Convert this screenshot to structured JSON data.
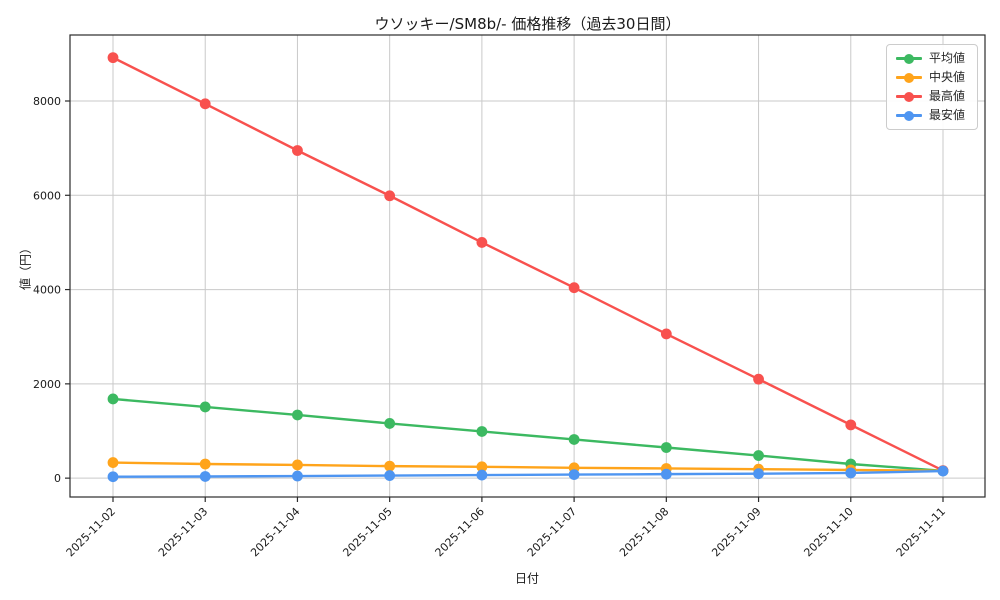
{
  "chart_data": {
    "type": "line",
    "title": "ウソッキー/SM8b/- 価格推移（過去30日間）",
    "xlabel": "日付",
    "ylabel": "値（円）",
    "x": [
      "2025-11-02",
      "2025-11-03",
      "2025-11-04",
      "2025-11-05",
      "2025-11-06",
      "2025-11-07",
      "2025-11-08",
      "2025-11-09",
      "2025-11-10",
      "2025-11-11"
    ],
    "series": [
      {
        "name": "平均値",
        "color": "#3cb961",
        "values": [
          1680,
          1510,
          1340,
          1160,
          990,
          820,
          650,
          480,
          300,
          155
        ]
      },
      {
        "name": "中央値",
        "color": "#ffa41b",
        "values": [
          330,
          300,
          280,
          255,
          240,
          220,
          205,
          190,
          175,
          155
        ]
      },
      {
        "name": "最高値",
        "color": "#f8514e",
        "values": [
          8920,
          7940,
          6950,
          5990,
          5000,
          4040,
          3060,
          2100,
          1130,
          160
        ]
      },
      {
        "name": "最安値",
        "color": "#4e95f1",
        "values": [
          30,
          35,
          45,
          55,
          65,
          75,
          85,
          95,
          110,
          150
        ]
      }
    ],
    "legend_order": [
      "平均値",
      "中央値",
      "最高値",
      "最安値"
    ],
    "legend_position": "upper right",
    "yticks": [
      0,
      2000,
      4000,
      6000,
      8000
    ],
    "ylim": [
      -400,
      9400
    ],
    "grid": true
  },
  "colors": {
    "grid": "#c9c9c9",
    "spine": "#2b2b2b",
    "tick_text": "#1a1a1a",
    "background": "#ffffff"
  }
}
